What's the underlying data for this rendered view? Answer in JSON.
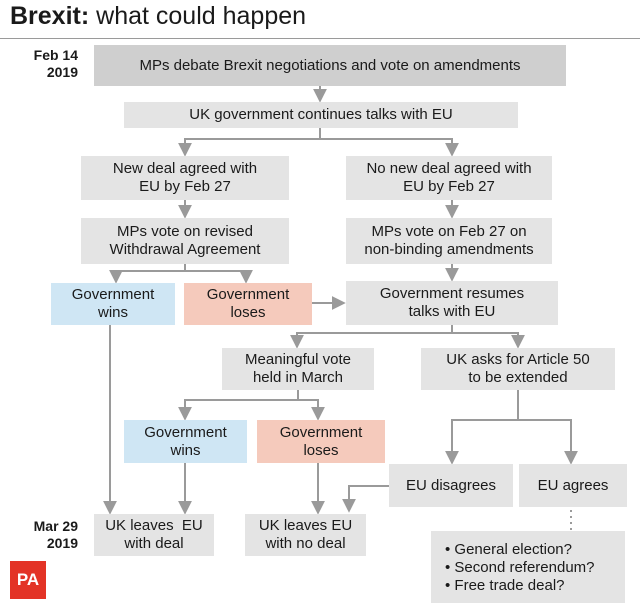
{
  "title": {
    "bold": "Brexit:",
    "rest": "what could happen"
  },
  "dates": [
    {
      "line1": "Feb 14",
      "line2": "2019"
    },
    {
      "line1": "Mar 29",
      "line2": "2019"
    }
  ],
  "boxes": {
    "debate": "MPs debate Brexit negotiations and vote on amendments",
    "talks": "UK government continues talks with EU",
    "deal_l1": "New deal agreed with",
    "deal_l2": "EU by Feb 27",
    "nodeal_l1": "No new deal agreed with",
    "nodeal_l2": "EU by Feb 27",
    "vote_l1": "MPs vote on revised",
    "vote_l2": "Withdrawal Agreement",
    "nonbinding_l1": "MPs vote on Feb 27 on",
    "nonbinding_l2": "non-binding amendments",
    "gw1_l1": "Government",
    "gw1_l2": "wins",
    "gl1_l1": "Government",
    "gl1_l2": "loses",
    "resume_l1": "Government resumes",
    "resume_l2": "talks with EU",
    "meaningful_l1": "Meaningful vote",
    "meaningful_l2": "held in March",
    "art50_l1": "UK asks for Article 50",
    "art50_l2": "to be extended",
    "gw2_l1": "Government",
    "gw2_l2": "wins",
    "gl2_l1": "Government",
    "gl2_l2": "loses",
    "disagrees": "EU disagrees",
    "agrees": "EU agrees",
    "deal_exit_l1": "UK leaves  EU",
    "deal_exit_l2": "with deal",
    "nodeal_exit_l1": "UK leaves EU",
    "nodeal_exit_l2": "with no deal"
  },
  "options": [
    "• General election?",
    "• Second referendum?",
    "• Free trade deal?"
  ],
  "logo": "PA",
  "colors": {
    "box_grey": "#e4e4e4",
    "box_dark": "#cfcfcf",
    "wins_blue": "#cfe6f4",
    "loses_red": "#f5cabc",
    "arrow": "#9a9a9a",
    "logo_red": "#e33326"
  }
}
